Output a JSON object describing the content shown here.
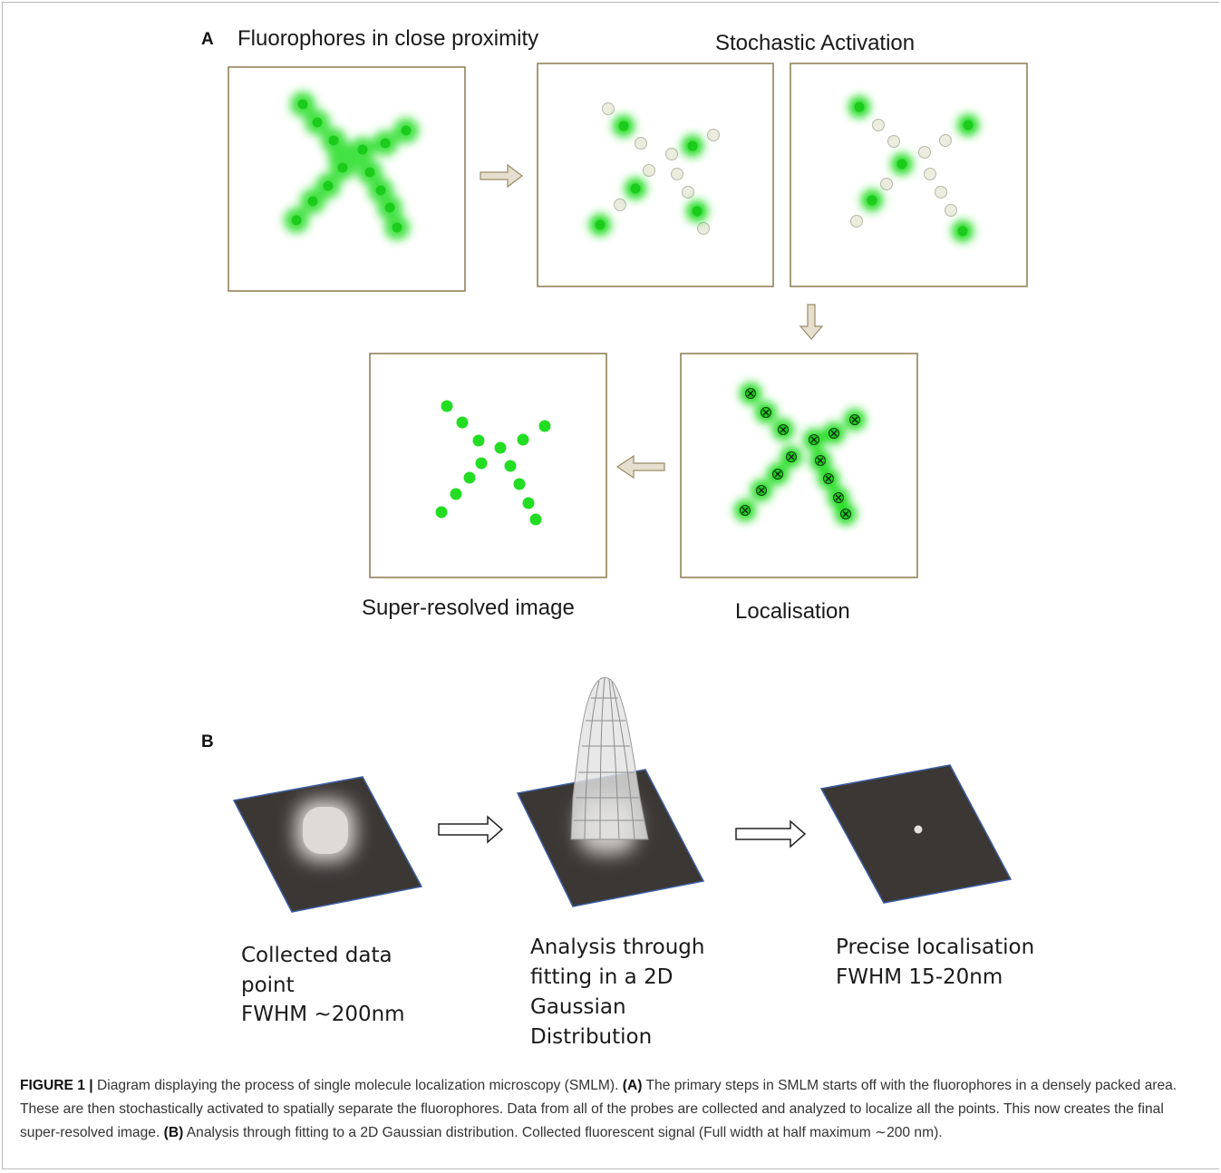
{
  "panel_a": {
    "letter": "A",
    "title_fluorophores": "Fluorophores in close proximity",
    "title_activation": "Stochastic Activation",
    "label_localisation": "Localisation",
    "label_super_resolved": "Super-resolved image"
  },
  "panel_b": {
    "letter": "B",
    "collected": [
      "Collected data",
      "point",
      "FWHM ~200nm"
    ],
    "analysis": [
      "Analysis through",
      "fitting in a 2D",
      "Gaussian",
      "Distribution"
    ],
    "precise": [
      "Precise localisation",
      "FWHM 15-20nm"
    ]
  },
  "colors": {
    "box_border": "#8b7a4f",
    "fluor_green": "#22dd22",
    "inactive_dot": "#ececdf",
    "arrow_fill": "#e6dfcf",
    "arrow_stroke": "#9a8a68",
    "plate": "#3b3735",
    "plate_edge": "#3c5fa0"
  },
  "caption": {
    "figure_label": "FIGURE 1 |",
    "intro": "Diagram displaying the process of single molecule localization microscopy (SMLM).",
    "a_label": "(A)",
    "a_text": "The primary steps in SMLM starts off with the fluorophores in a densely packed area. These are then stochastically activated to spatially separate the fluorophores. Data from all of the probes are collected and analyzed to localize all the points. This now creates the final super-resolved image.",
    "b_label": "(B)",
    "b_text": "Analysis through fitting to a 2D Gaussian distribution. Collected fluorescent signal (Full width at half maximum ∼200 nm)."
  }
}
